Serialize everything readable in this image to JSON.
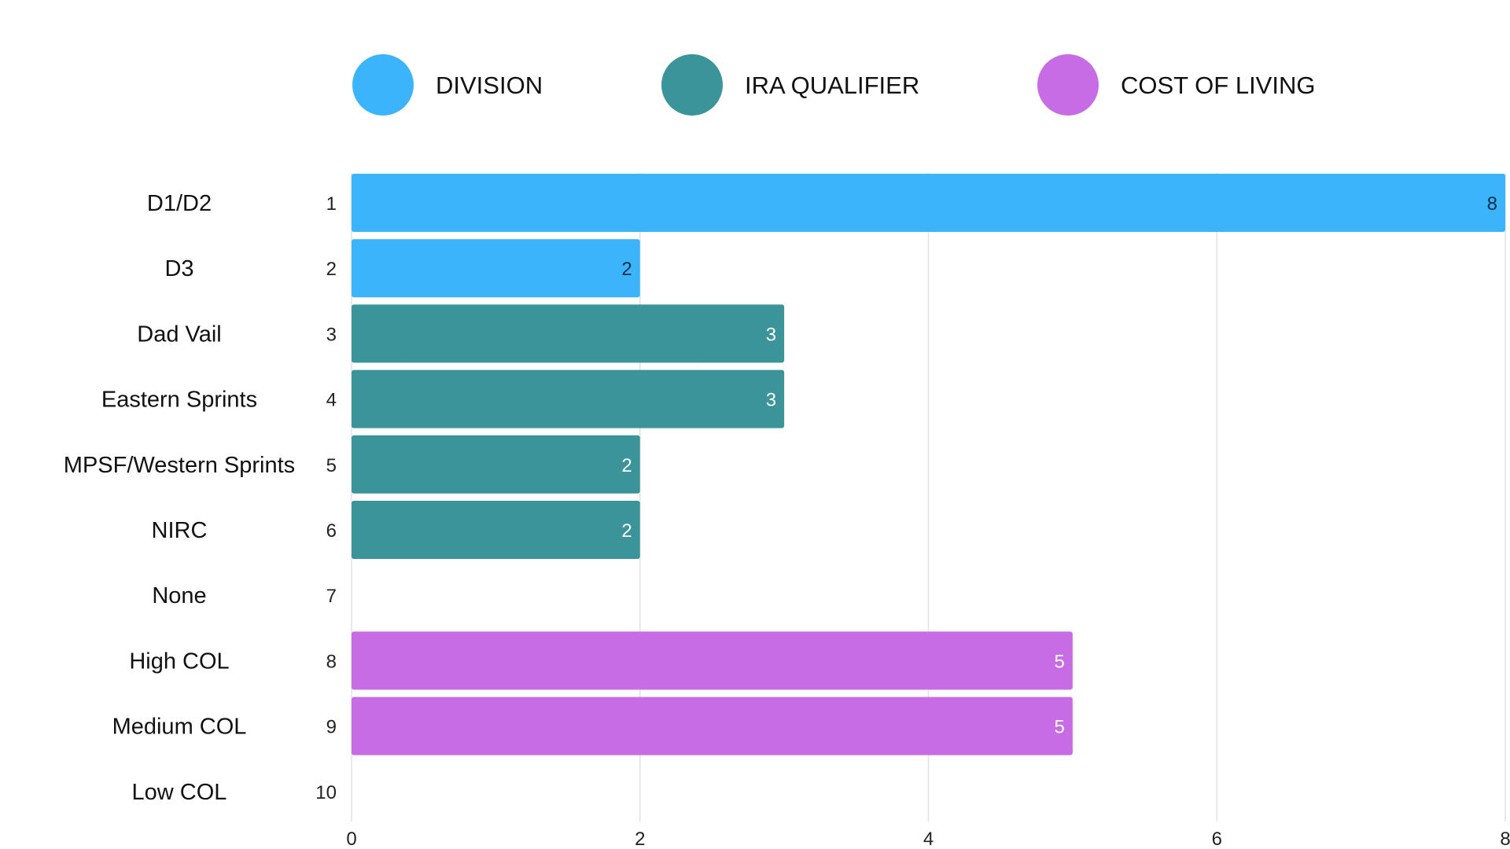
{
  "chart_data": {
    "type": "bar",
    "orientation": "horizontal",
    "title": "",
    "xlabel": "",
    "ylabel": "",
    "xlim": [
      0,
      8
    ],
    "x_ticks": [
      "0",
      "2",
      "4",
      "6",
      "8"
    ],
    "grid": true,
    "legend_position": "top-center",
    "legend": [
      {
        "name": "DIVISION",
        "color": "#3BB4FB"
      },
      {
        "name": "IRA QUALIFIER",
        "color": "#3A949A"
      },
      {
        "name": "COST OF LIVING",
        "color": "#C86CE6"
      }
    ],
    "categories": [
      {
        "label": "D1/D2",
        "rank": "1",
        "value": 8,
        "series": "DIVISION"
      },
      {
        "label": "D3",
        "rank": "2",
        "value": 2,
        "series": "DIVISION"
      },
      {
        "label": "Dad Vail",
        "rank": "3",
        "value": 3,
        "series": "IRA QUALIFIER"
      },
      {
        "label": "Eastern Sprints",
        "rank": "4",
        "value": 3,
        "series": "IRA QUALIFIER"
      },
      {
        "label": "MPSF/Western Sprints",
        "rank": "5",
        "value": 2,
        "series": "IRA QUALIFIER"
      },
      {
        "label": "NIRC",
        "rank": "6",
        "value": 2,
        "series": "IRA QUALIFIER"
      },
      {
        "label": "None",
        "rank": "7",
        "value": null,
        "series": "IRA QUALIFIER"
      },
      {
        "label": "High COL",
        "rank": "8",
        "value": 5,
        "series": "COST OF LIVING"
      },
      {
        "label": "Medium COL",
        "rank": "9",
        "value": 5,
        "series": "COST OF LIVING"
      },
      {
        "label": "Low COL",
        "rank": "10",
        "value": null,
        "series": "COST OF LIVING"
      }
    ]
  }
}
